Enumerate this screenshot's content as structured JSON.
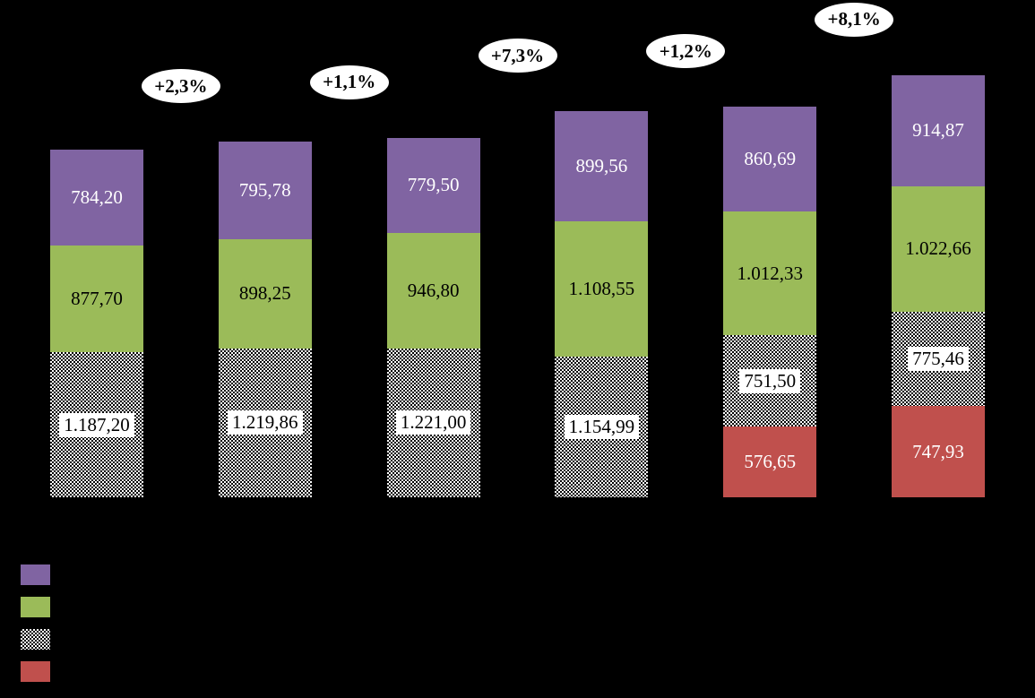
{
  "chart_data": {
    "type": "bar",
    "stacked": true,
    "title": "",
    "background_color": "#000000",
    "axes_visible": false,
    "grid": false,
    "legend_position": "bottom-left",
    "series": [
      {
        "key": "purple",
        "color": "#8064A2",
        "fill": "solid",
        "label": ""
      },
      {
        "key": "green",
        "color": "#9BBB59",
        "fill": "solid",
        "label": ""
      },
      {
        "key": "pattern",
        "color": "black-white-checkerboard",
        "fill": "dither-pattern",
        "label": ""
      },
      {
        "key": "red",
        "color": "#C0504D",
        "fill": "solid",
        "label": ""
      }
    ],
    "bars": [
      {
        "segments": [
          {
            "series": "pattern",
            "value": 1187.2,
            "display": "1.187,20"
          },
          {
            "series": "green",
            "value": 877.7,
            "display": "877,70"
          },
          {
            "series": "purple",
            "value": 784.2,
            "display": "784,20"
          }
        ]
      },
      {
        "segments": [
          {
            "series": "pattern",
            "value": 1219.86,
            "display": "1.219,86"
          },
          {
            "series": "green",
            "value": 898.25,
            "display": "898,25"
          },
          {
            "series": "purple",
            "value": 795.78,
            "display": "795,78"
          }
        ]
      },
      {
        "segments": [
          {
            "series": "pattern",
            "value": 1221.0,
            "display": "1.221,00"
          },
          {
            "series": "green",
            "value": 946.8,
            "display": "946,80"
          },
          {
            "series": "purple",
            "value": 779.5,
            "display": "779,50"
          }
        ]
      },
      {
        "segments": [
          {
            "series": "pattern",
            "value": 1154.99,
            "display": "1.154,99"
          },
          {
            "series": "green",
            "value": 1108.55,
            "display": "1.108,55"
          },
          {
            "series": "purple",
            "value": 899.56,
            "display": "899,56"
          }
        ]
      },
      {
        "segments": [
          {
            "series": "red",
            "value": 576.65,
            "display": "576,65"
          },
          {
            "series": "pattern",
            "value": 751.5,
            "display": "751,50"
          },
          {
            "series": "green",
            "value": 1012.33,
            "display": "1.012,33"
          },
          {
            "series": "purple",
            "value": 860.69,
            "display": "860,69"
          }
        ]
      },
      {
        "segments": [
          {
            "series": "red",
            "value": 747.93,
            "display": "747,93"
          },
          {
            "series": "pattern",
            "value": 775.46,
            "display": "775,46"
          },
          {
            "series": "green",
            "value": 1022.66,
            "display": "1.022,66"
          },
          {
            "series": "purple",
            "value": 914.87,
            "display": "914,87"
          }
        ]
      }
    ],
    "growth_labels": [
      {
        "between_bars": [
          1,
          2
        ],
        "value": 2.3,
        "label": "+2,3%"
      },
      {
        "between_bars": [
          2,
          3
        ],
        "value": 1.1,
        "label": "+1,1%"
      },
      {
        "between_bars": [
          3,
          4
        ],
        "value": 7.3,
        "label": "+7,3%"
      },
      {
        "between_bars": [
          4,
          5
        ],
        "value": 1.2,
        "label": "+1,2%"
      },
      {
        "between_bars": [
          5,
          6
        ],
        "value": 8.1,
        "label": "+8,1%"
      }
    ],
    "legend": {
      "items": [
        {
          "series": "purple",
          "label": ""
        },
        {
          "series": "green",
          "label": ""
        },
        {
          "series": "pattern",
          "label": ""
        },
        {
          "series": "red",
          "label": ""
        }
      ]
    }
  }
}
